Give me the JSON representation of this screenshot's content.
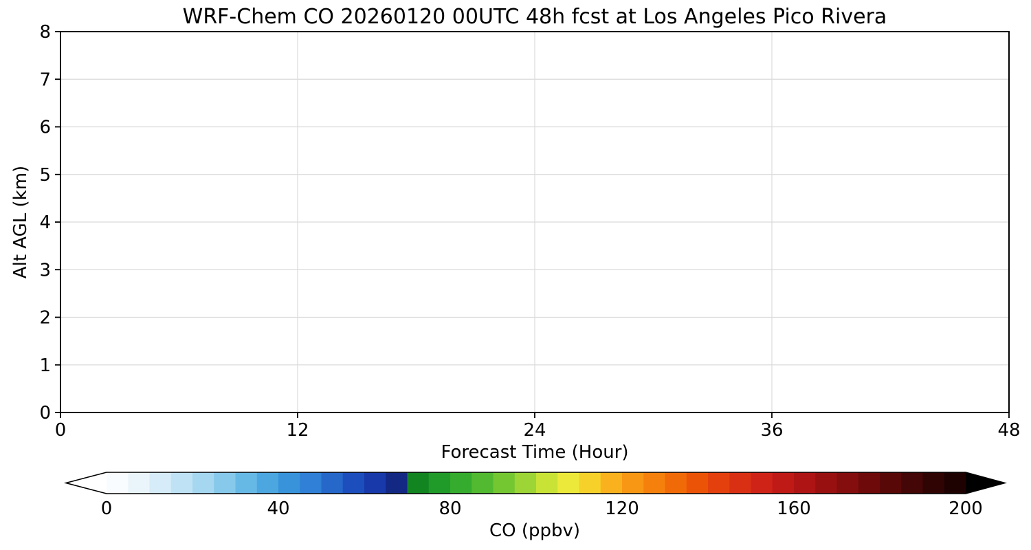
{
  "figure": {
    "background": "#ffffff"
  },
  "chart_data": {
    "type": "heatmap",
    "title": "WRF-Chem CO  20260120 00UTC 48h fcst at Los Angeles Pico Rivera",
    "xlabel": "Forecast Time (Hour)",
    "ylabel": "Alt AGL (km)",
    "xlim": [
      0,
      48
    ],
    "ylim": [
      0,
      8
    ],
    "xticks": [
      0,
      12,
      24,
      36,
      48
    ],
    "yticks": [
      0,
      1,
      2,
      3,
      4,
      5,
      6,
      7,
      8
    ],
    "grid": true,
    "grid_color": "#dadada",
    "frame_color": "#000000",
    "values": [],
    "legend_position": "bottom"
  },
  "colorbar": {
    "label": "CO  (ppbv)",
    "ticks": [
      0,
      40,
      80,
      120,
      160,
      200
    ],
    "range": [
      0,
      200
    ],
    "extend": "both",
    "under_color": "#ffffff",
    "over_color": "#000000",
    "outline_color": "#000000",
    "stops": [
      {
        "v": 0,
        "c": "#ffffff"
      },
      {
        "v": 8,
        "c": "#e9f4fb"
      },
      {
        "v": 16,
        "c": "#c8e6f6"
      },
      {
        "v": 24,
        "c": "#9ed3ef"
      },
      {
        "v": 32,
        "c": "#6abbe6"
      },
      {
        "v": 40,
        "c": "#3e9ddd"
      },
      {
        "v": 48,
        "c": "#2e7ed5"
      },
      {
        "v": 56,
        "c": "#1f55c2"
      },
      {
        "v": 64,
        "c": "#1632a5"
      },
      {
        "v": 68,
        "c": "#13267e"
      },
      {
        "v": 71,
        "c": "#0e7d1e"
      },
      {
        "v": 80,
        "c": "#27a52c"
      },
      {
        "v": 88,
        "c": "#55bb30"
      },
      {
        "v": 96,
        "c": "#8ed034"
      },
      {
        "v": 102,
        "c": "#c4e236"
      },
      {
        "v": 108,
        "c": "#f0ea3a"
      },
      {
        "v": 114,
        "c": "#f8c825"
      },
      {
        "v": 120,
        "c": "#f9a317"
      },
      {
        "v": 128,
        "c": "#f57e0b"
      },
      {
        "v": 136,
        "c": "#ee5a05"
      },
      {
        "v": 144,
        "c": "#e03a10"
      },
      {
        "v": 152,
        "c": "#d02418"
      },
      {
        "v": 160,
        "c": "#b81616"
      },
      {
        "v": 168,
        "c": "#971010"
      },
      {
        "v": 176,
        "c": "#750b0b"
      },
      {
        "v": 184,
        "c": "#520707"
      },
      {
        "v": 192,
        "c": "#330404"
      },
      {
        "v": 200,
        "c": "#150101"
      }
    ]
  }
}
